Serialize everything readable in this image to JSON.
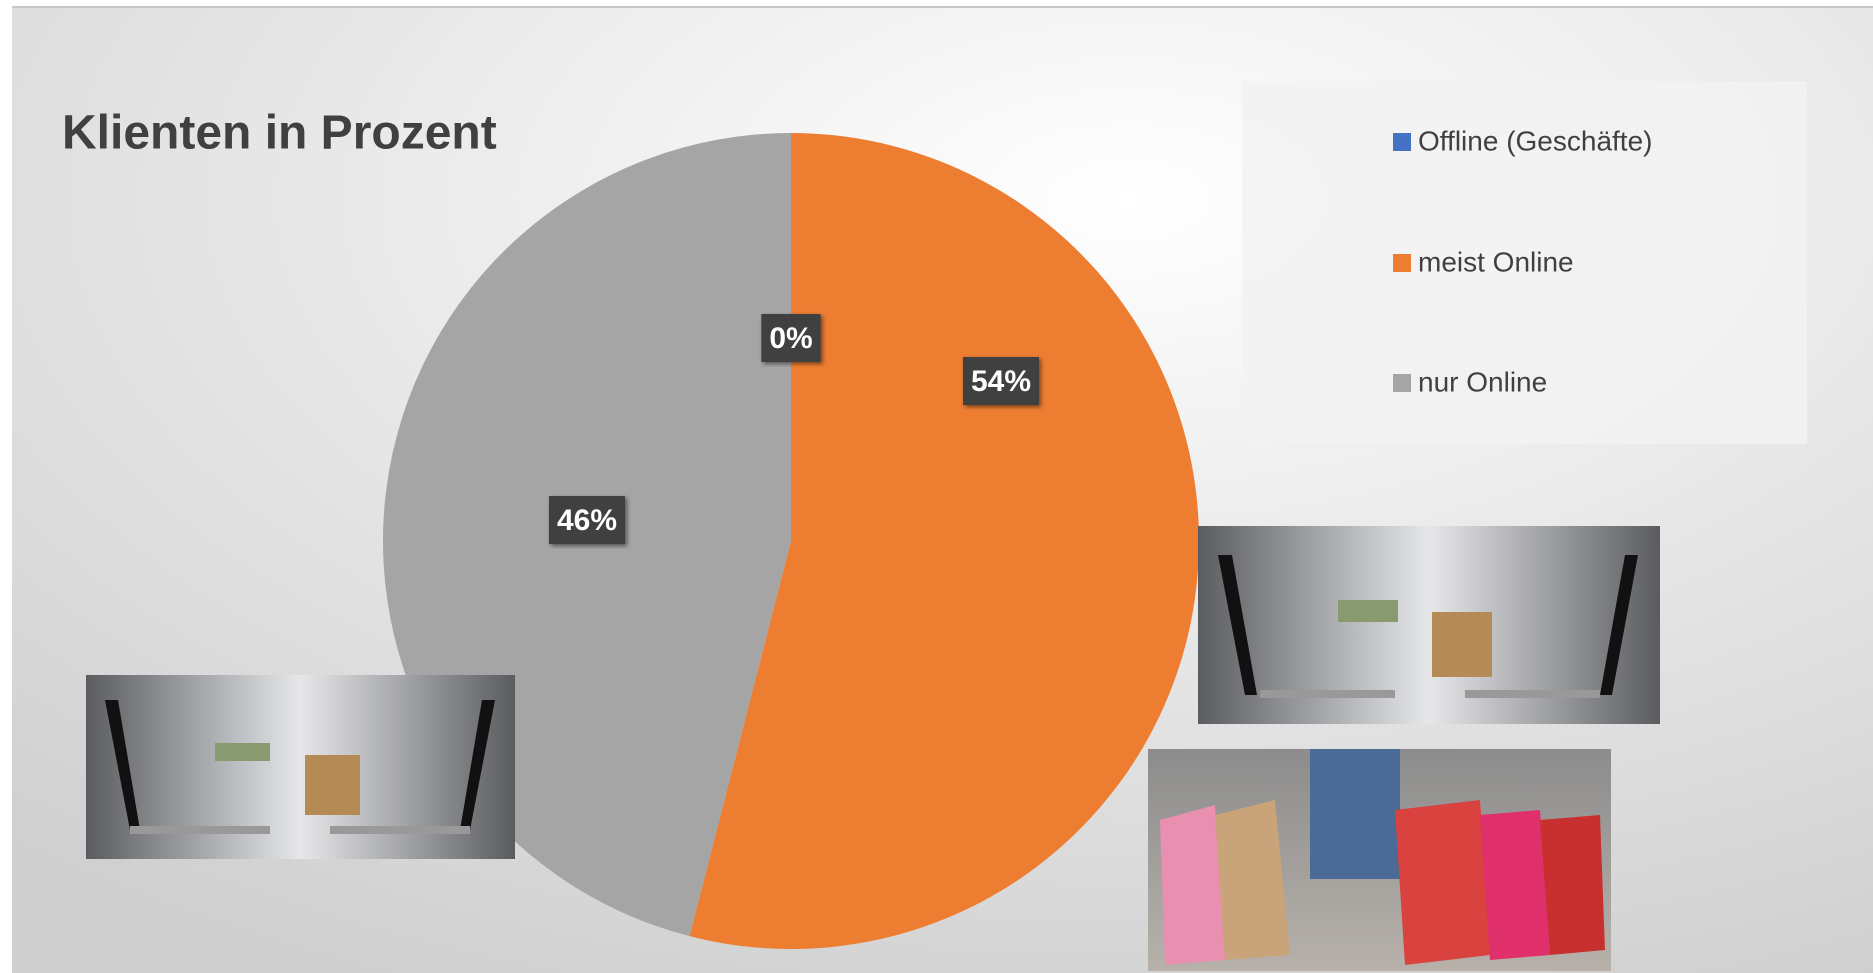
{
  "chart_data": {
    "type": "pie",
    "title": "Klienten in Prozent",
    "categories": [
      "Offline (Geschäfte)",
      "meist Online",
      "nur Online"
    ],
    "values": [
      0,
      54,
      46
    ],
    "value_labels": [
      "0%",
      "54%",
      "46%"
    ],
    "colors": [
      "#4472c4",
      "#ed7d31",
      "#a5a5a5"
    ],
    "legend": "top-right"
  }
}
